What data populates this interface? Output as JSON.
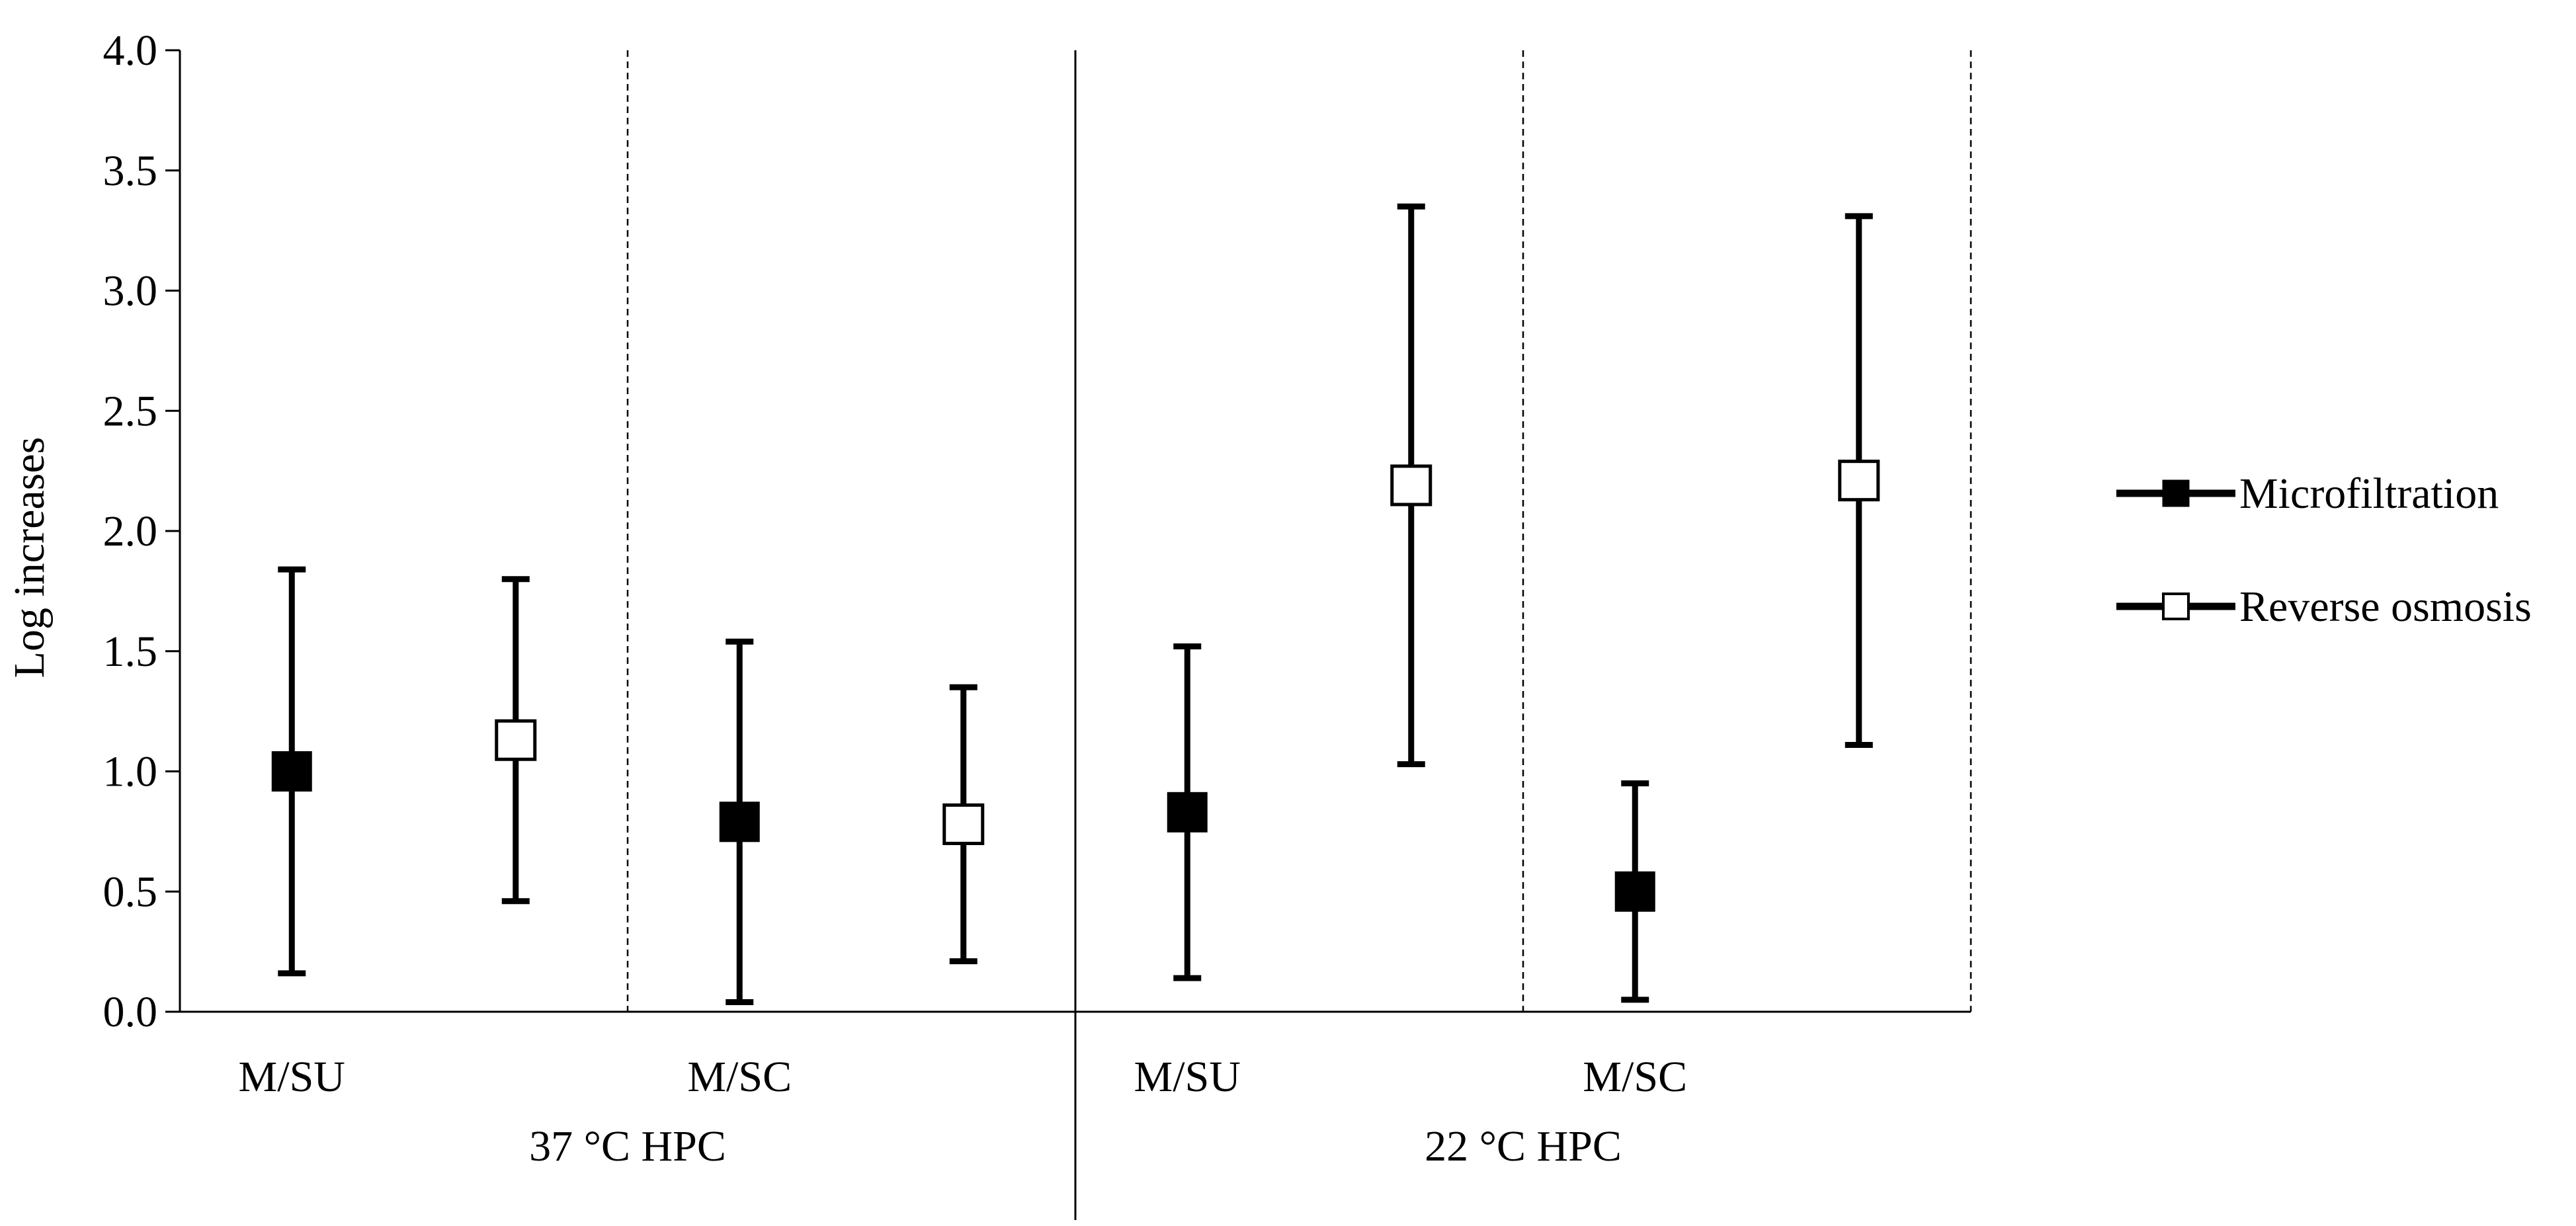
{
  "chart_data": {
    "type": "scatter",
    "ylabel": "Log increases",
    "ylim": [
      0,
      4.0
    ],
    "yticks": [
      "0.0",
      "0.5",
      "1.0",
      "1.5",
      "2.0",
      "2.5",
      "3.0",
      "3.5",
      "4.0"
    ],
    "yticks_values": [
      0,
      0.5,
      1.0,
      1.5,
      2.0,
      2.5,
      3.0,
      3.5,
      4.0
    ],
    "groups": [
      {
        "label": "37 °C HPC",
        "categories": [
          "M/SU",
          "M/SC"
        ]
      },
      {
        "label": "22 °C HPC",
        "categories": [
          "M/SU",
          "M/SC"
        ]
      }
    ],
    "categories": [
      "M/SU",
      "M/SC",
      "M/SU",
      "M/SC"
    ],
    "legend_position": "right",
    "series": [
      {
        "name": "Microfiltration",
        "marker": "filled-square",
        "values": [
          1.0,
          0.79,
          0.83,
          0.5
        ],
        "err_low": [
          0.16,
          0.04,
          0.14,
          0.05
        ],
        "err_high": [
          1.84,
          1.54,
          1.52,
          0.95
        ]
      },
      {
        "name": "Reverse osmosis",
        "marker": "open-square",
        "values": [
          1.13,
          0.78,
          2.19,
          2.21
        ],
        "err_low": [
          0.46,
          0.21,
          1.03,
          1.11
        ],
        "err_high": [
          1.8,
          1.35,
          3.35,
          3.31
        ]
      }
    ],
    "colors": {
      "line": "#000000",
      "filled_marker": "#000000",
      "open_marker_fill": "#ffffff"
    }
  }
}
